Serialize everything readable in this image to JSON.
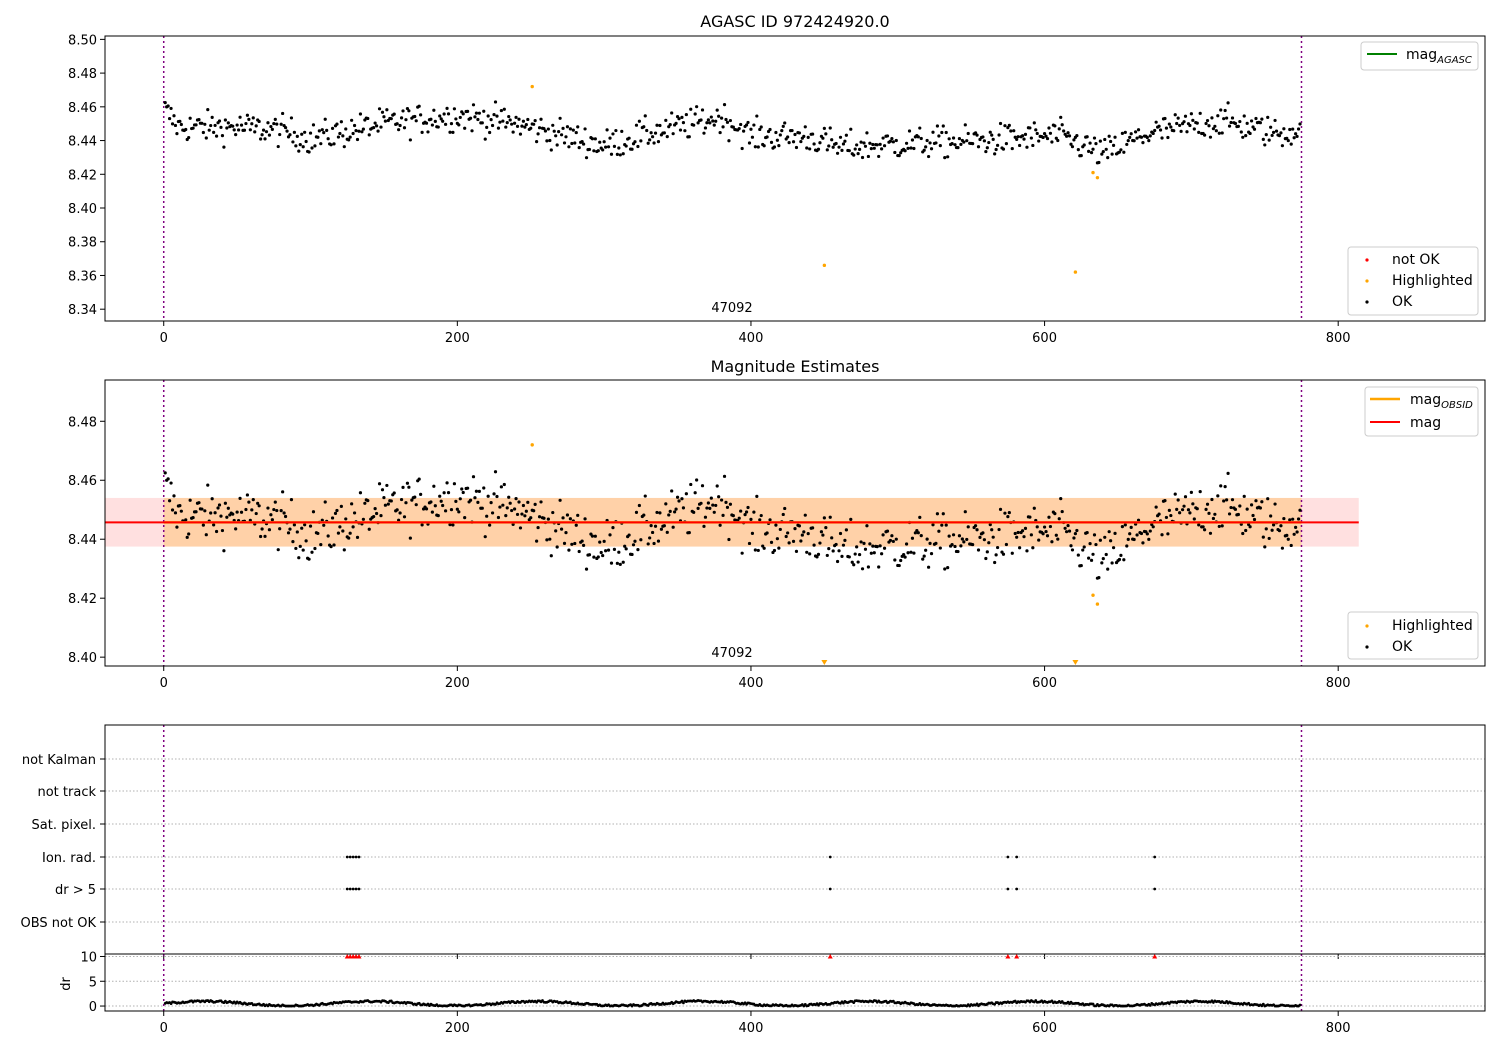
{
  "colors": {
    "ok": "#000000",
    "highlighted": "#ffa500",
    "not_ok": "#ff0000",
    "mag_agasc": "#008000",
    "mag_obsid": "#ffa500",
    "mag": "#ff0000",
    "boundary": "#800080",
    "band_obsid": "#ffa500",
    "band_mag": "#ff9999"
  },
  "chart_data": [
    {
      "type": "scatter",
      "title": "AGASC ID 972424920.0",
      "xlim": [
        -40,
        900
      ],
      "ylim": [
        8.333,
        8.502
      ],
      "xticks": [
        0,
        200,
        400,
        600,
        800
      ],
      "yticks": [
        8.34,
        8.36,
        8.38,
        8.4,
        8.42,
        8.44,
        8.46,
        8.48,
        8.5
      ],
      "ytick_labels": [
        "8.34",
        "8.36",
        "8.38",
        "8.40",
        "8.42",
        "8.44",
        "8.46",
        "8.48",
        "8.50"
      ],
      "boundaries": [
        0,
        775
      ],
      "obsid_label": {
        "text": "47092",
        "x": 387,
        "y": 8.339
      },
      "highlighted_points": [
        [
          251,
          8.472
        ],
        [
          450,
          8.366
        ],
        [
          621,
          8.362
        ],
        [
          633,
          8.421
        ],
        [
          636,
          8.418
        ]
      ],
      "legend_top": [
        {
          "label": "mag",
          "sub": "AGASC",
          "color_key": "mag_agasc"
        }
      ],
      "legend_bottom": [
        {
          "label": "not OK",
          "color_key": "not_ok"
        },
        {
          "label": "Highlighted",
          "color_key": "highlighted"
        },
        {
          "label": "OK",
          "color_key": "ok"
        }
      ]
    },
    {
      "type": "scatter",
      "title": "Magnitude Estimates",
      "xlim": [
        -40,
        900
      ],
      "ylim": [
        8.397,
        8.494
      ],
      "xticks": [
        0,
        200,
        400,
        600,
        800
      ],
      "yticks": [
        8.4,
        8.42,
        8.44,
        8.46,
        8.48
      ],
      "ytick_labels": [
        "8.40",
        "8.42",
        "8.44",
        "8.46",
        "8.48"
      ],
      "boundaries": [
        0,
        775
      ],
      "obsid_label": {
        "text": "47092",
        "x": 387,
        "y": 8.402
      },
      "mag_value": 8.4457,
      "mag_band": [
        8.4375,
        8.454
      ],
      "mag_band_x": [
        -40,
        814
      ],
      "obsid_band_x": [
        0,
        775
      ],
      "highlighted_points": [
        [
          251,
          8.472
        ],
        [
          633,
          8.421
        ],
        [
          636,
          8.418
        ]
      ],
      "offscale_markers": [
        450,
        621
      ],
      "legend_top": [
        {
          "label": "mag",
          "sub": "OBSID",
          "color_key": "mag_obsid"
        },
        {
          "label": "mag",
          "sub": "",
          "color_key": "mag"
        }
      ],
      "legend_bottom": [
        {
          "label": "Highlighted",
          "color_key": "highlighted"
        },
        {
          "label": "OK",
          "color_key": "ok"
        }
      ]
    },
    {
      "type": "scatter",
      "xlim": [
        -40,
        900
      ],
      "xticks": [
        0,
        200,
        400,
        600,
        800
      ],
      "boundaries": [
        0,
        775
      ],
      "flag_rows": [
        "not Kalman",
        "not track",
        "Sat. pixel.",
        "Ion. rad.",
        "dr > 5",
        "OBS not OK"
      ],
      "flag_points": {
        "Ion. rad.": [
          125,
          127,
          129,
          131,
          133,
          454,
          575,
          581,
          675
        ],
        "dr > 5": [
          125,
          127,
          129,
          131,
          133,
          454,
          575,
          581,
          675
        ]
      }
    },
    {
      "type": "scatter",
      "ylabel": "dr",
      "xlim": [
        -40,
        900
      ],
      "ylim": [
        -1,
        10.5
      ],
      "yticks": [
        0,
        5,
        10
      ],
      "ytick_labels": [
        "0",
        "5",
        "10"
      ],
      "xticks": [
        0,
        200,
        400,
        600,
        800
      ],
      "xtick_labels": [
        "0",
        "200",
        "400",
        "600",
        "800"
      ],
      "capped_points": [
        125,
        127,
        129,
        131,
        133,
        454,
        575,
        581,
        675
      ],
      "cap_value": 10
    }
  ]
}
